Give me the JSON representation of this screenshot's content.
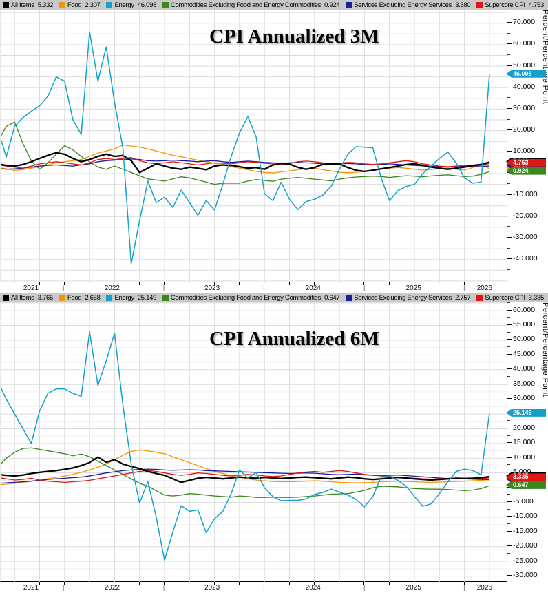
{
  "window": {
    "background": "#ffffff"
  },
  "colors": {
    "all_items": "#000000",
    "food": "#f79500",
    "energy": "#13a0cd",
    "commodities": "#3c871e",
    "services": "#1c1c9e",
    "supercore": "#df1712",
    "legend_bg": "#c9c9c9",
    "grid": "#dcdcdc",
    "grid_minor": "#efefef",
    "axis": "#000000"
  },
  "chart_data": [
    {
      "type": "line",
      "title": "CPI Annualized 3M",
      "ylabel": "Percent/Percentage Point",
      "ylim": [
        -51,
        76
      ],
      "ytick_step": 10,
      "ytick_top": 70,
      "ytick_bottom": -40,
      "grid": true,
      "legend_position": "top",
      "x": {
        "start": "2020-11",
        "end": "2025-10",
        "freq": "monthly",
        "year_labels": [
          "2021",
          "2022",
          "2023",
          "2024",
          "2025",
          "2026"
        ],
        "separator": "|"
      },
      "series": [
        {
          "name": "All Items",
          "color_key": "all_items",
          "current": "5.332",
          "values": [
            4.5,
            3.8,
            3.5,
            4.2,
            5.5,
            7.0,
            8.5,
            9.7,
            9.0,
            7.0,
            5.5,
            6.5,
            8.0,
            9.0,
            8.0,
            8.4,
            6.0,
            0.5,
            2.5,
            4.5,
            3.5,
            2.5,
            2.0,
            3.0,
            2.5,
            1.8,
            3.5,
            4.0,
            3.8,
            3.2,
            2.5,
            2.8,
            2.0,
            4.0,
            4.8,
            4.4,
            2.9,
            2.0,
            2.8,
            4.3,
            4.6,
            4.4,
            2.8,
            1.5,
            1.0,
            1.5,
            2.2,
            2.8,
            3.5,
            4.2,
            4.5,
            3.8,
            3.0,
            2.5,
            2.0,
            2.5,
            3.0,
            3.8,
            4.2,
            5.332
          ]
        },
        {
          "name": "Food",
          "color_key": "food",
          "current": "2.307",
          "values": [
            2.8,
            2.2,
            1.5,
            1.8,
            2.5,
            3.2,
            4.0,
            5.0,
            5.5,
            6.0,
            6.5,
            8.0,
            9.5,
            10.5,
            11.5,
            13.3,
            12.8,
            12.3,
            11.5,
            10.5,
            9.5,
            8.5,
            7.8,
            7.0,
            6.2,
            5.5,
            4.8,
            4.0,
            3.2,
            2.5,
            1.8,
            1.0,
            0.5,
            0.3,
            0.8,
            1.2,
            1.8,
            2.2,
            2.5,
            1.8,
            1.2,
            0.6,
            0.4,
            0.6,
            1.0,
            1.5,
            2.0,
            2.5,
            2.8,
            2.5,
            2.0,
            1.6,
            1.9,
            2.2,
            2.5,
            2.0,
            1.6,
            2.8,
            4.3,
            2.307
          ]
        },
        {
          "name": "Energy",
          "color_key": "energy",
          "current": "46.098",
          "values": [
            20.5,
            7.7,
            22,
            26,
            29,
            31.5,
            36,
            45,
            43,
            25,
            18.3,
            66,
            43,
            59,
            33,
            12,
            -42,
            -22,
            -3.5,
            -13.5,
            -11,
            -15.8,
            -7.7,
            -13.5,
            -19.4,
            -12.6,
            -17,
            -5,
            8,
            19,
            26.5,
            17,
            -9.4,
            -12.6,
            -4,
            -12,
            -16.8,
            -13,
            -12,
            -10,
            -6,
            2,
            9,
            12.5,
            12.3,
            12,
            -2,
            -12.6,
            -8,
            -6,
            -5,
            0,
            3.5,
            7,
            10,
            5,
            -2,
            -4.5,
            -4,
            46.098
          ]
        },
        {
          "name": "Commodities Excluding Food and Energy Commodities",
          "color_key": "commodities",
          "current": "0.924",
          "values": [
            15,
            22,
            24,
            14,
            6,
            2,
            5,
            9,
            13,
            11,
            8,
            5.5,
            3,
            2,
            3.5,
            2,
            0.5,
            -1,
            -2.5,
            -3,
            -3.5,
            -2.5,
            -1.5,
            -2,
            -3,
            -4,
            -5,
            -4.5,
            -4.5,
            -4.5,
            -3.5,
            -2.8,
            -3.2,
            -3.6,
            -2.6,
            -2.2,
            -1.8,
            -2.2,
            -2.6,
            -3,
            -3.4,
            -2.6,
            -2,
            -1.6,
            -1.4,
            -1.2,
            -1.4,
            -1.8,
            -1.4,
            -1,
            -1.2,
            -1.5,
            -1.1,
            -0.8,
            -0.6,
            -1,
            -1.4,
            -1.2,
            -0.4,
            0.924
          ]
        },
        {
          "name": "Services Excluding Energy Services",
          "color_key": "services",
          "current": "3.580",
          "values": [
            2.3,
            2.0,
            2.2,
            2.5,
            3.0,
            3.5,
            3.8,
            4.0,
            3.7,
            3.5,
            4.0,
            4.5,
            5.5,
            6.0,
            6.2,
            6.5,
            6.8,
            6.5,
            6.0,
            5.8,
            6.0,
            6.2,
            6.0,
            5.8,
            5.5,
            5.8,
            6.0,
            5.5,
            5.2,
            5.5,
            5.8,
            5.5,
            5.2,
            5.0,
            4.8,
            5.0,
            5.2,
            5.0,
            4.8,
            4.5,
            4.3,
            4.5,
            4.7,
            4.5,
            4.2,
            4.0,
            4.2,
            4.5,
            4.3,
            4.0,
            3.8,
            3.6,
            3.4,
            3.2,
            3.0,
            3.2,
            3.4,
            3.3,
            3.2,
            3.58
          ]
        },
        {
          "name": "Supercore CPI",
          "color_key": "supercore",
          "current": "4.753",
          "values": [
            4.0,
            3.5,
            3.0,
            2.5,
            3.5,
            4.5,
            5.0,
            5.5,
            5.0,
            4.5,
            4.0,
            5.0,
            6.5,
            7.0,
            6.5,
            7.0,
            7.5,
            6.0,
            5.0,
            4.5,
            5.0,
            5.5,
            5.0,
            4.5,
            4.0,
            4.5,
            5.0,
            4.8,
            4.5,
            5.0,
            5.5,
            5.2,
            4.8,
            4.5,
            4.2,
            4.5,
            5.5,
            5.8,
            5.5,
            5.0,
            4.5,
            4.8,
            5.2,
            5.0,
            4.5,
            4.3,
            4.5,
            5.0,
            5.5,
            6.0,
            5.5,
            4.5,
            4.0,
            3.5,
            3.2,
            3.5,
            3.8,
            3.5,
            3.8,
            4.753
          ]
        }
      ]
    },
    {
      "type": "line",
      "title": "CPI Annualized 6M",
      "ylabel": "Percent/Percentage Point",
      "ylim": [
        -32.2,
        62.6
      ],
      "ytick_step": 5,
      "ytick_top": 60,
      "ytick_bottom": -30,
      "grid": true,
      "legend_position": "top",
      "x": {
        "start": "2020-11",
        "end": "2025-10",
        "freq": "monthly",
        "year_labels": [
          "2021",
          "2022",
          "2023",
          "2024",
          "2025",
          "2026"
        ],
        "separator": "|"
      },
      "series": [
        {
          "name": "All Items",
          "color_key": "all_items",
          "current": "3.765",
          "values": [
            4.5,
            4.2,
            4.0,
            4.3,
            4.8,
            5.2,
            5.5,
            5.8,
            6.2,
            6.7,
            7.5,
            8.5,
            10.4,
            8.6,
            9.5,
            8.0,
            7.2,
            6.5,
            5.5,
            4.8,
            4.2,
            3.0,
            1.8,
            2.5,
            3.2,
            3.5,
            3.3,
            3.0,
            3.3,
            3.6,
            3.4,
            3.2,
            3.5,
            3.3,
            3.1,
            3.3,
            3.5,
            3.6,
            3.4,
            3.2,
            3.0,
            3.3,
            3.6,
            3.4,
            3.0,
            2.8,
            3.0,
            3.3,
            3.5,
            3.3,
            3.0,
            2.8,
            2.6,
            2.8,
            3.0,
            3.2,
            3.1,
            3.2,
            3.4,
            3.765
          ]
        },
        {
          "name": "Food",
          "color_key": "food",
          "current": "2.658",
          "values": [
            1.0,
            1.2,
            1.5,
            1.8,
            2.2,
            2.6,
            3.0,
            3.5,
            4.0,
            4.5,
            5.2,
            6.0,
            7.0,
            8.0,
            9.5,
            11.0,
            12.3,
            12.8,
            12.5,
            12.0,
            11.5,
            10.5,
            9.5,
            8.5,
            7.5,
            6.5,
            5.5,
            4.8,
            4.0,
            3.5,
            3.0,
            2.6,
            2.3,
            2.1,
            2.0,
            2.0,
            2.1,
            2.2,
            2.3,
            2.2,
            2.0,
            1.8,
            1.7,
            1.6,
            1.7,
            1.8,
            2.0,
            2.1,
            2.2,
            2.1,
            2.0,
            1.9,
            1.8,
            1.9,
            2.0,
            2.1,
            2.2,
            2.3,
            2.5,
            2.658
          ]
        },
        {
          "name": "Energy",
          "color_key": "energy",
          "current": "25.149",
          "values": [
            36,
            30,
            25,
            20,
            15,
            26,
            32,
            33.5,
            33.5,
            32,
            31,
            52.8,
            34.7,
            43,
            52.4,
            28,
            8,
            -5.2,
            2.1,
            -10,
            -24.6,
            -15,
            -6.1,
            -8,
            -7.5,
            -15.2,
            -10.5,
            -8,
            -2,
            6.0,
            3.3,
            5.1,
            0,
            -3,
            -4.4,
            -4.3,
            -4.3,
            -3.8,
            -2.3,
            -1.6,
            -0.5,
            -1.5,
            -2.5,
            -4,
            -6.5,
            -3,
            3.7,
            3.9,
            2.5,
            0.5,
            -3,
            -6.3,
            -5.5,
            -2,
            2,
            5.5,
            6.3,
            5.8,
            4.4,
            25.149
          ]
        },
        {
          "name": "Commodities Excluding Food and Energy Commodities",
          "color_key": "commodities",
          "current": "0.647",
          "values": [
            7,
            10,
            12,
            13.3,
            13.5,
            13,
            12.5,
            12,
            11.5,
            10.8,
            11.4,
            10.5,
            9,
            7.5,
            6,
            4.5,
            3,
            1.5,
            0.5,
            -1,
            -2.5,
            -2.8,
            -2.5,
            -2,
            -2.2,
            -2.5,
            -2.8,
            -3,
            -3.2,
            -2.8,
            -3,
            -3.3,
            -3.3,
            -3.2,
            -3.3,
            -3.3,
            -3.2,
            -3,
            -2.8,
            -2.5,
            -2.2,
            -2.1,
            -2,
            -1.5,
            -0.9,
            0,
            0.5,
            0.4,
            0.3,
            0,
            -0.3,
            -0.4,
            -0.5,
            -0.5,
            -0.6,
            -0.8,
            -1,
            -0.8,
            -0.3,
            0.647
          ]
        },
        {
          "name": "Services Excluding Energy Services",
          "color_key": "services",
          "current": "2.757",
          "values": [
            1.5,
            1.6,
            1.8,
            2.0,
            2.2,
            2.5,
            2.8,
            3.0,
            3.2,
            3.4,
            3.6,
            4.0,
            4.5,
            5.0,
            5.4,
            5.8,
            6.0,
            6.2,
            6.3,
            6.2,
            6.0,
            5.9,
            6.0,
            6.1,
            6.0,
            5.8,
            5.7,
            5.6,
            5.5,
            5.4,
            5.3,
            5.2,
            5.1,
            5.0,
            4.9,
            4.8,
            4.9,
            5.0,
            4.9,
            4.7,
            4.5,
            4.4,
            4.5,
            4.6,
            4.4,
            4.2,
            4.1,
            4.2,
            4.3,
            4.1,
            3.9,
            3.7,
            3.5,
            3.3,
            3.1,
            3.0,
            3.0,
            2.9,
            2.8,
            2.757
          ]
        },
        {
          "name": "Supercore CPI",
          "color_key": "supercore",
          "current": "3.335",
          "values": [
            3.5,
            3.0,
            2.6,
            2.8,
            3.2,
            2.6,
            2.2,
            2.0,
            1.8,
            2.0,
            2.2,
            2.5,
            3.0,
            3.5,
            4.0,
            4.5,
            5.0,
            5.5,
            5.8,
            5.5,
            5.0,
            4.5,
            4.2,
            4.5,
            5.0,
            4.8,
            4.5,
            4.2,
            4.0,
            4.2,
            4.5,
            4.3,
            4.0,
            3.8,
            4.0,
            4.5,
            5.0,
            5.3,
            5.5,
            5.2,
            5.5,
            5.8,
            5.5,
            5.0,
            4.5,
            4.2,
            4.0,
            3.8,
            3.5,
            3.3,
            3.2,
            3.0,
            2.9,
            3.0,
            3.1,
            3.2,
            3.1,
            3.0,
            3.1,
            3.335
          ]
        }
      ]
    }
  ]
}
